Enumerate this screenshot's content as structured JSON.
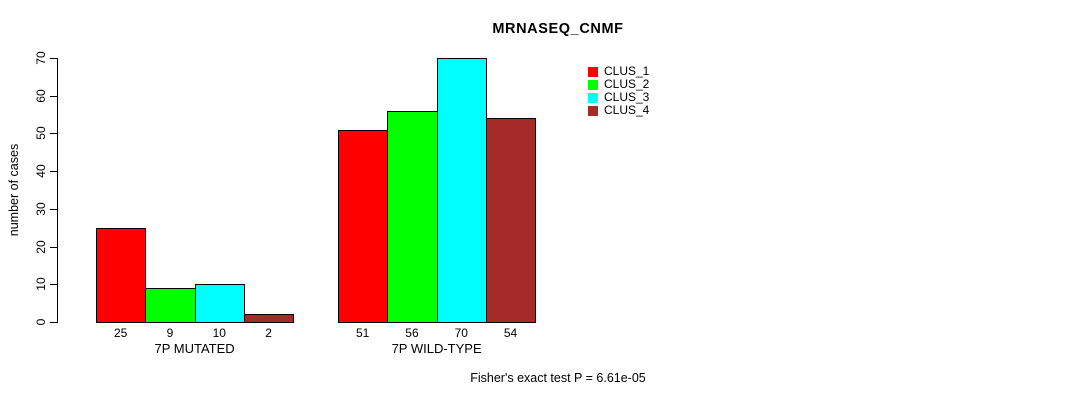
{
  "chart_data": {
    "type": "bar",
    "title": "MRNASEQ_CNMF",
    "ylabel": "number of cases",
    "xlabel": "",
    "categories": [
      "7P MUTATED",
      "7P WILD-TYPE"
    ],
    "series": [
      {
        "name": "CLUS_1",
        "color": "#ff0000",
        "values": [
          25,
          51
        ]
      },
      {
        "name": "CLUS_2",
        "color": "#00ff00",
        "values": [
          9,
          56
        ]
      },
      {
        "name": "CLUS_3",
        "color": "#00ffff",
        "values": [
          10,
          70
        ]
      },
      {
        "name": "CLUS_4",
        "color": "#a52a2a",
        "values": [
          2,
          54
        ]
      }
    ],
    "bar_value_labels": [
      [
        25,
        9,
        10,
        2
      ],
      [
        51,
        56,
        70,
        54
      ]
    ],
    "ylim": [
      0,
      70
    ],
    "yticks": [
      0,
      10,
      20,
      30,
      40,
      50,
      60,
      70
    ],
    "grid": false,
    "legend_position": "top-right",
    "annotation": "Fisher's exact test P = 6.61e-05"
  }
}
